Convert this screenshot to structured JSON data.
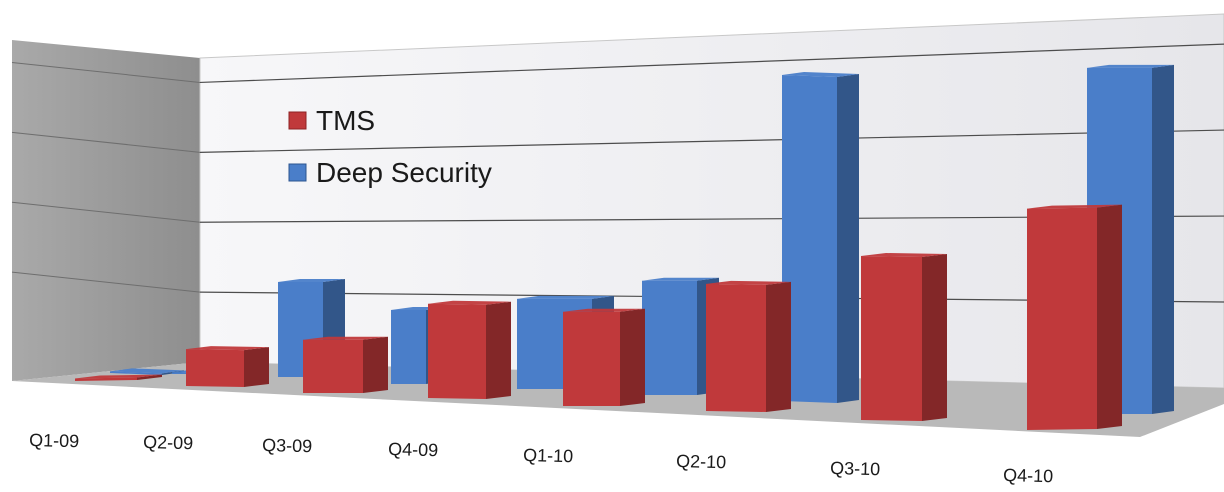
{
  "chart_data": {
    "type": "bar",
    "title": "",
    "xlabel": "",
    "ylabel": "",
    "categories": [
      "Q1-09",
      "Q2-09",
      "Q3-09",
      "Q4-09",
      "Q1-10",
      "Q2-10",
      "Q3-10",
      "Q4-10"
    ],
    "series": [
      {
        "name": "TMS",
        "color": "#c0393b",
        "values": [
          0.3,
          4.5,
          6.5,
          11.5,
          11.5,
          15.5,
          20,
          27
        ]
      },
      {
        "name": "Deep Security",
        "color": "#4a7ec9",
        "values": [
          0.2,
          0.2,
          11.8,
          9.2,
          11.2,
          14.2,
          40.5,
          43
        ]
      }
    ],
    "ylim": [
      0,
      45
    ],
    "grid": true,
    "legend": {
      "placement": "top-left"
    },
    "style": "3d-clustered-column"
  }
}
